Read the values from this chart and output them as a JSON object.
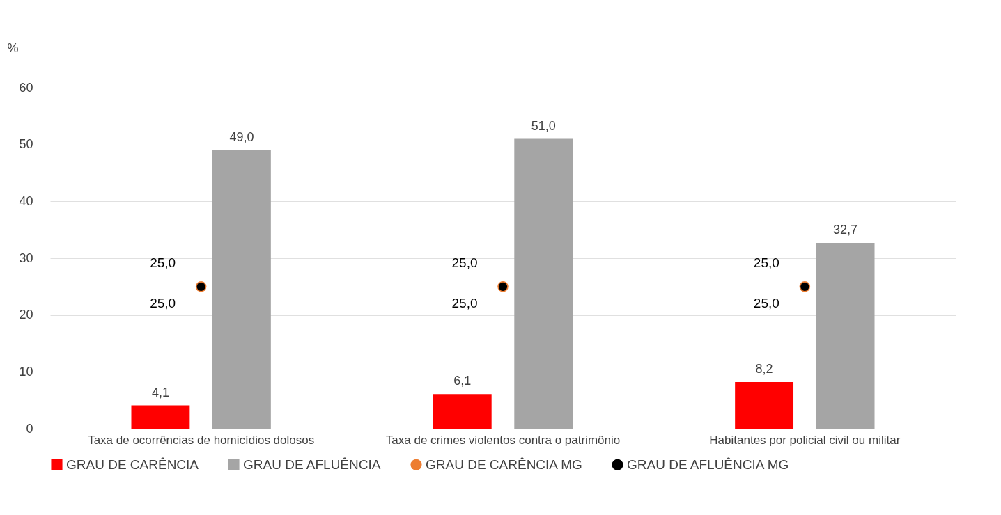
{
  "chart_data": {
    "type": "bar",
    "ylabel": "%",
    "categories": [
      "Taxa de ocorrências de homicídios dolosos",
      "Taxa de crimes violentos contra o patrimônio",
      "Habitantes por policial civil ou militar"
    ],
    "ylim": [
      0,
      60
    ],
    "yticks": [
      0,
      10,
      20,
      30,
      40,
      50,
      60
    ],
    "grid": "y",
    "legend": "bottom",
    "marker": "circle",
    "series": [
      {
        "name": "GRAU DE CARÊNCIA",
        "color": "#ff0000",
        "values": [
          4.1,
          6.1,
          8.2
        ],
        "value_labels": [
          "4,1",
          "6,1",
          "8,2"
        ]
      },
      {
        "name": "GRAU DE AFLUÊNCIA",
        "color": "#a5a5a5",
        "values": [
          49.0,
          51.0,
          32.7
        ],
        "value_labels": [
          "49,0",
          "51,0",
          "32,7"
        ]
      },
      {
        "name": "GRAU DE CARÊNCIA MG",
        "type": "scatter",
        "color": "#ed7d31",
        "values": [
          25,
          25,
          25
        ],
        "value_labels": [
          "25,0",
          "25,0",
          "25,0"
        ]
      },
      {
        "name": "GRAU DE AFLUÊNCIA MG",
        "type": "scatter",
        "color": "#000000",
        "values": [
          25,
          25,
          25
        ],
        "value_labels": [
          "25,0",
          "25,0",
          "25,0"
        ]
      }
    ]
  }
}
